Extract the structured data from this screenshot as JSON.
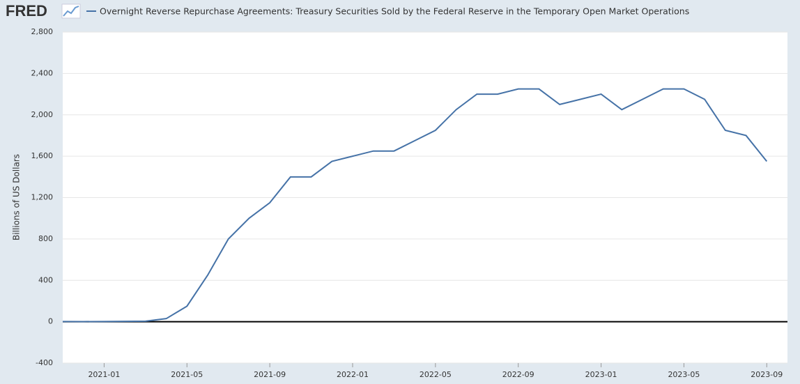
{
  "logo": "FRED",
  "chart_data": {
    "type": "line",
    "title": "Overnight Reverse Repurchase Agreements: Treasury Securities Sold by the Federal Reserve in the Temporary Open Market Operations",
    "y_label": "Billions of US Dollars",
    "x": [
      "2020-11",
      "2020-12",
      "2021-01",
      "2021-02",
      "2021-03",
      "2021-04",
      "2021-05",
      "2021-06",
      "2021-07",
      "2021-08",
      "2021-09",
      "2021-10",
      "2021-11",
      "2021-12",
      "2022-01",
      "2022-02",
      "2022-03",
      "2022-04",
      "2022-05",
      "2022-06",
      "2022-07",
      "2022-08",
      "2022-09",
      "2022-10",
      "2022-11",
      "2022-12",
      "2023-01",
      "2023-02",
      "2023-03",
      "2023-04",
      "2023-05",
      "2023-06",
      "2023-07",
      "2023-08",
      "2023-09"
    ],
    "series": [
      {
        "name": "Overnight Reverse Repurchase Agreements: Treasury Securities Sold by the Federal Reserve in the Temporary Open Market Operations",
        "color": "#4572a7",
        "values": [
          2,
          1,
          2,
          3,
          5,
          30,
          150,
          450,
          800,
          1000,
          1150,
          1400,
          1400,
          1550,
          1600,
          1650,
          1650,
          1750,
          1850,
          2050,
          2200,
          2200,
          2250,
          2250,
          2100,
          2150,
          2200,
          2050,
          2150,
          2250,
          2250,
          2150,
          1850,
          1800,
          1550
        ]
      }
    ],
    "xlim": [
      "2020-11",
      "2023-10"
    ],
    "xticks": [
      "2021-01",
      "2021-05",
      "2021-09",
      "2022-01",
      "2022-05",
      "2022-09",
      "2023-01",
      "2023-05",
      "2023-09"
    ],
    "ylim": [
      -400,
      2800
    ],
    "yticks": [
      -400,
      0,
      400,
      800,
      {
        "value": 1200,
        "label": "1,200"
      },
      {
        "value": 1600,
        "label": "1,600"
      },
      {
        "value": 2000,
        "label": "2,000"
      },
      {
        "value": 2400,
        "label": "2,400"
      },
      {
        "value": 2800,
        "label": "2,800"
      }
    ],
    "grid": true
  }
}
